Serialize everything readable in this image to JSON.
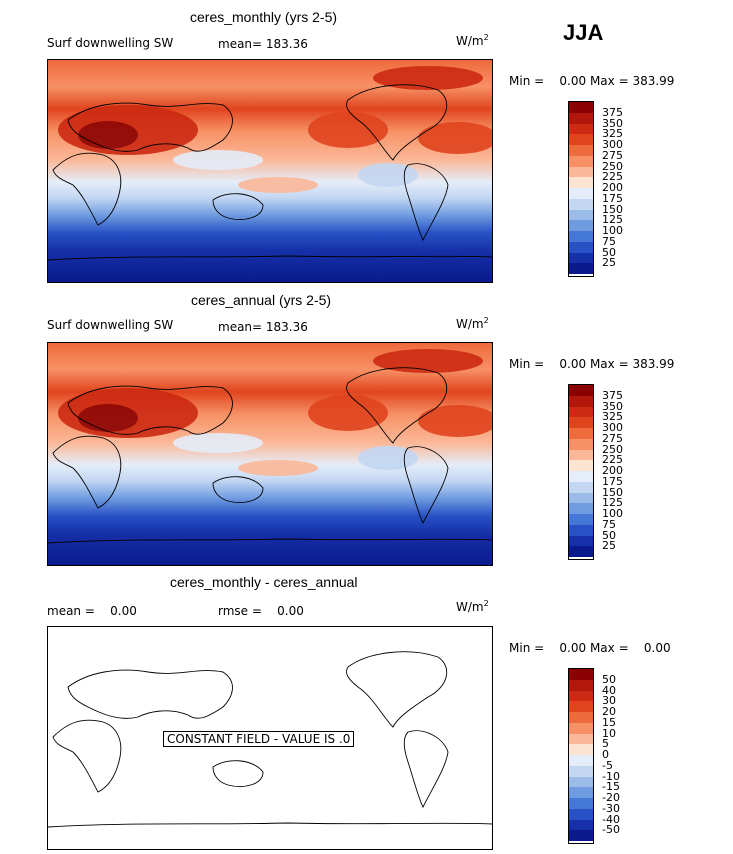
{
  "season": "JJA",
  "panels": [
    {
      "title": "ceres_monthly (yrs 2-5)",
      "variable": "Surf downwelling SW",
      "mean_text": "mean= 183.36",
      "units": "W/m",
      "units_sup": "2",
      "minmax_text": "Min =    0.00 Max = 383.99",
      "colorbar": {
        "labels": [
          "375",
          "350",
          "325",
          "300",
          "275",
          "250",
          "225",
          "200",
          "175",
          "150",
          "125",
          "100",
          "75",
          "50",
          "25"
        ],
        "colors": [
          "#8b0000",
          "#b3160b",
          "#cc2a12",
          "#e0441e",
          "#ef6a3c",
          "#f79165",
          "#fbb898",
          "#fde3d2",
          "#e4edf9",
          "#c3d7f2",
          "#9bbbe9",
          "#6f9be0",
          "#4577d6",
          "#2751c4",
          "#1530a8",
          "#0a1a8c"
        ]
      }
    },
    {
      "title": "ceres_annual (yrs 2-5)",
      "variable": "Surf downwelling SW",
      "mean_text": "mean= 183.36",
      "units": "W/m",
      "units_sup": "2",
      "minmax_text": "Min =    0.00 Max = 383.99",
      "colorbar": {
        "labels": [
          "375",
          "350",
          "325",
          "300",
          "275",
          "250",
          "225",
          "200",
          "175",
          "150",
          "125",
          "100",
          "75",
          "50",
          "25"
        ],
        "colors": [
          "#8b0000",
          "#b3160b",
          "#cc2a12",
          "#e0441e",
          "#ef6a3c",
          "#f79165",
          "#fbb898",
          "#fde3d2",
          "#e4edf9",
          "#c3d7f2",
          "#9bbbe9",
          "#6f9be0",
          "#4577d6",
          "#2751c4",
          "#1530a8",
          "#0a1a8c"
        ]
      }
    },
    {
      "title": "ceres_monthly - ceres_annual",
      "mean_text": "mean =    0.00",
      "rmse_text": "rmse =    0.00",
      "units": "W/m",
      "units_sup": "2",
      "minmax_text": "Min =    0.00 Max =    0.00",
      "constant_field_text": "CONSTANT FIELD - VALUE IS .0",
      "colorbar": {
        "labels": [
          "50",
          "40",
          "30",
          "20",
          "15",
          "10",
          "5",
          "0",
          "-5",
          "-10",
          "-15",
          "-20",
          "-30",
          "-40",
          "-50"
        ],
        "colors": [
          "#8b0000",
          "#b3160b",
          "#cc2a12",
          "#e0441e",
          "#ef6a3c",
          "#f79165",
          "#fbb898",
          "#fde3d2",
          "#e4edf9",
          "#c3d7f2",
          "#9bbbe9",
          "#6f9be0",
          "#4577d6",
          "#2751c4",
          "#1530a8",
          "#0a1a8c"
        ]
      }
    }
  ]
}
